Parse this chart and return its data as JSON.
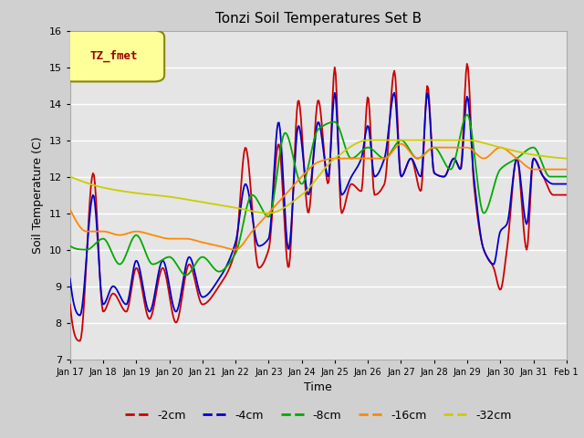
{
  "title": "Tonzi Soil Temperatures Set B",
  "xlabel": "Time",
  "ylabel": "Soil Temperature (C)",
  "ylim": [
    7.0,
    16.0
  ],
  "yticks": [
    7.0,
    8.0,
    9.0,
    10.0,
    11.0,
    12.0,
    13.0,
    14.0,
    15.0,
    16.0
  ],
  "xtick_labels": [
    "Jan 17",
    "Jan 18",
    "Jan 19",
    "Jan 20",
    "Jan 21",
    "Jan 22",
    "Jan 23",
    "Jan 24",
    "Jan 25",
    "Jan 26",
    "Jan 27",
    "Jan 28",
    "Jan 29",
    "Jan 30",
    "Jan 31",
    "Feb 1"
  ],
  "series_colors": [
    "#cc0000",
    "#0000cc",
    "#00aa00",
    "#ff8800",
    "#cccc00"
  ],
  "series_labels": [
    "-2cm",
    "-4cm",
    "-8cm",
    "-16cm",
    "-32cm"
  ],
  "plot_bg": "#e5e5e5",
  "fig_bg": "#d0d0d0",
  "grid_color": "#ffffff",
  "legend_label": "TZ_fmet",
  "legend_bg": "#ffff99",
  "legend_border": "#888800"
}
